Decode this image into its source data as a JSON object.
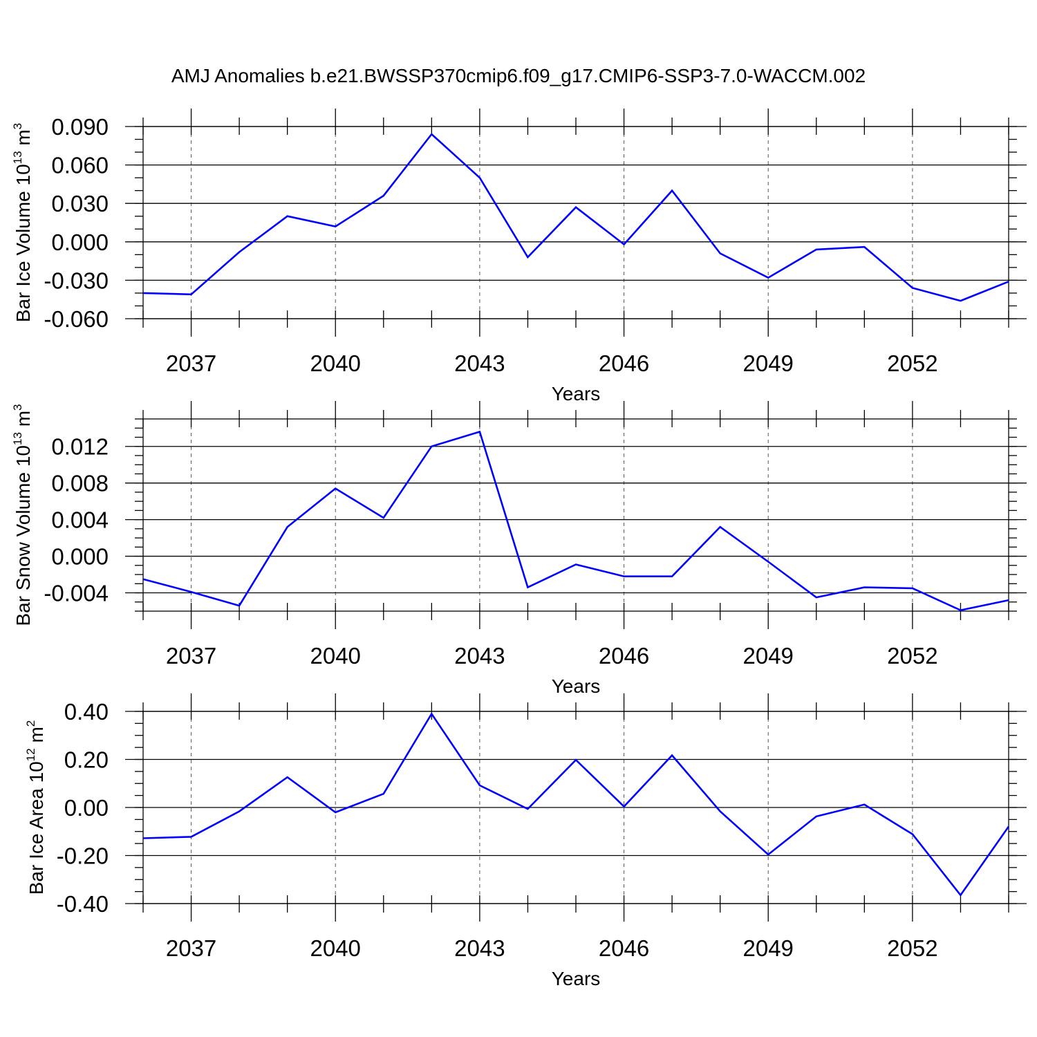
{
  "title": "AMJ Anomalies b.e21.BWSSP370cmip6.f09_g17.CMIP6-SSP3-7.0-WACCM.002",
  "line_color": "#0000ff",
  "chart_data": [
    {
      "type": "line",
      "ylabel_main": "Bar Ice Volume 10",
      "ylabel_exp": "13",
      "ylabel_unit": " m",
      "ylabel_unit_exp": "3",
      "xlabel": "Years",
      "xlim": [
        2036,
        2054
      ],
      "ylim": [
        -0.06,
        0.09
      ],
      "yticks": [
        0.09,
        0.06,
        0.03,
        0.0,
        -0.03,
        -0.06
      ],
      "ytick_labels": [
        "0.090",
        "0.060",
        "0.030",
        "0.000",
        "-0.030",
        "-0.060"
      ],
      "y_minor_step": 0.01,
      "xticks": [
        2037,
        2040,
        2043,
        2046,
        2049,
        2052
      ],
      "xtick_labels": [
        "2037",
        "2040",
        "2043",
        "2046",
        "2049",
        "2052"
      ],
      "x": [
        2036,
        2037,
        2038,
        2039,
        2040,
        2041,
        2042,
        2043,
        2044,
        2045,
        2046,
        2047,
        2048,
        2049,
        2050,
        2051,
        2052,
        2053,
        2054
      ],
      "y": [
        -0.04,
        -0.041,
        -0.008,
        0.02,
        0.012,
        0.036,
        0.084,
        0.05,
        -0.012,
        0.027,
        -0.002,
        0.04,
        -0.009,
        -0.028,
        -0.006,
        -0.004,
        -0.036,
        -0.046,
        -0.031
      ]
    },
    {
      "type": "line",
      "ylabel_main": "Bar Snow Volume 10",
      "ylabel_exp": "13",
      "ylabel_unit": " m",
      "ylabel_unit_exp": "3",
      "xlabel": "Years",
      "xlim": [
        2036,
        2054
      ],
      "ylim": [
        -0.006,
        0.015
      ],
      "yticks": [
        0.012,
        0.008,
        0.004,
        0.0,
        -0.004
      ],
      "ytick_labels": [
        "0.012",
        "0.008",
        "0.004",
        "0.000",
        "-0.004"
      ],
      "y_minor_step": 0.001,
      "xticks": [
        2037,
        2040,
        2043,
        2046,
        2049,
        2052
      ],
      "xtick_labels": [
        "2037",
        "2040",
        "2043",
        "2046",
        "2049",
        "2052"
      ],
      "x": [
        2036,
        2037,
        2038,
        2039,
        2040,
        2041,
        2042,
        2043,
        2044,
        2045,
        2046,
        2047,
        2048,
        2049,
        2050,
        2051,
        2052,
        2053,
        2054
      ],
      "y": [
        -0.0025,
        -0.0039,
        -0.0054,
        0.0032,
        0.0074,
        0.0042,
        0.012,
        0.0136,
        -0.0034,
        -0.0009,
        -0.0022,
        -0.0022,
        0.0032,
        -0.0006,
        -0.0045,
        -0.0034,
        -0.0035,
        -0.0059,
        -0.0048
      ]
    },
    {
      "type": "line",
      "ylabel_main": "Bar Ice Area 10",
      "ylabel_exp": "12",
      "ylabel_unit": " m",
      "ylabel_unit_exp": "2",
      "xlabel": "Years",
      "xlim": [
        2036,
        2054
      ],
      "ylim": [
        -0.4,
        0.4
      ],
      "yticks": [
        0.4,
        0.2,
        0.0,
        -0.2,
        -0.4
      ],
      "ytick_labels": [
        "0.40",
        "0.20",
        "0.00",
        "-0.20",
        "-0.40"
      ],
      "y_minor_step": 0.05,
      "xticks": [
        2037,
        2040,
        2043,
        2046,
        2049,
        2052
      ],
      "xtick_labels": [
        "2037",
        "2040",
        "2043",
        "2046",
        "2049",
        "2052"
      ],
      "x": [
        2036,
        2037,
        2038,
        2039,
        2040,
        2041,
        2042,
        2043,
        2044,
        2045,
        2046,
        2047,
        2048,
        2049,
        2050,
        2051,
        2052,
        2053,
        2054
      ],
      "y": [
        -0.128,
        -0.122,
        -0.016,
        0.126,
        -0.02,
        0.057,
        0.39,
        0.092,
        -0.006,
        0.198,
        0.004,
        0.217,
        -0.016,
        -0.196,
        -0.037,
        0.012,
        -0.111,
        -0.365,
        -0.079
      ]
    }
  ]
}
